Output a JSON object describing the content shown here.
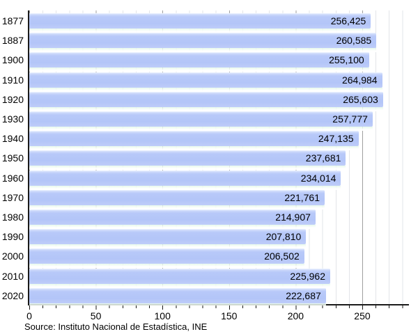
{
  "chart_data": {
    "type": "bar",
    "orientation": "horizontal",
    "title": "",
    "categories": [
      "1877",
      "1887",
      "1900",
      "1910",
      "1920",
      "1930",
      "1940",
      "1950",
      "1960",
      "1970",
      "1980",
      "1990",
      "2000",
      "2010",
      "2020"
    ],
    "values": [
      256425,
      260585,
      255100,
      264984,
      265603,
      257777,
      247135,
      237681,
      234014,
      221761,
      214907,
      207810,
      206502,
      225962,
      222687
    ],
    "value_labels": [
      "256,425",
      "260,585",
      "255,100",
      "264,984",
      "265,603",
      "257,777",
      "247,135",
      "237,681",
      "234,014",
      "221,761",
      "214,907",
      "207,810",
      "206,502",
      "225,962",
      "222,687"
    ],
    "x_axis": {
      "tick_values": [
        0,
        50,
        100,
        150,
        200,
        250
      ],
      "tick_labels": [
        "0",
        "50",
        "100",
        "150",
        "200",
        "250"
      ],
      "minor_tick_step": 10,
      "axis_max": 284,
      "values_scale": "thousands"
    },
    "xlim": [
      0,
      284
    ],
    "ylabel": "",
    "xlabel": "",
    "grid": "vertical; minor every 10, major every 50",
    "legend": "none",
    "source_note": "Source: Instituto Nacional de Estadística, INE",
    "colors": {
      "bar_fill": "#b3c5f8",
      "bar_highlight": "#f0f6ff",
      "grid_minor": "#e2e4e8",
      "grid_major": "#9f9f9f",
      "axis": "#1a1a1a",
      "text": "#000000",
      "background": "#ffffff"
    }
  }
}
